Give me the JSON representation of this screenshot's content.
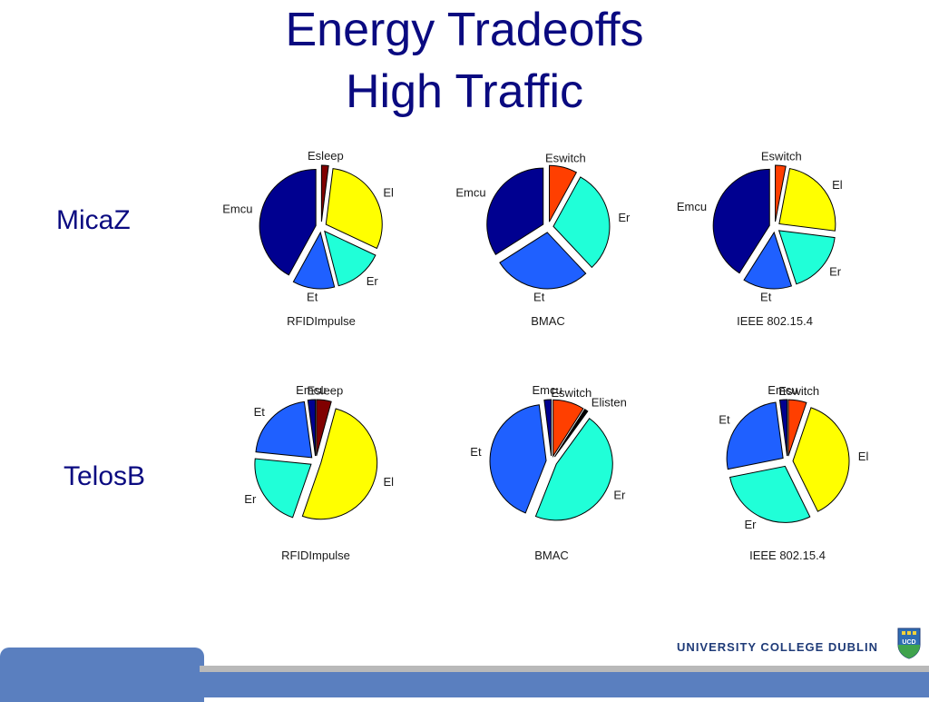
{
  "slide": {
    "title_line1": "Energy Tradeoffs",
    "title_line2": "High Traffic",
    "row_labels": [
      "MicaZ",
      "TelosB"
    ],
    "footer_text": "UNIVERSITY COLLEGE DUBLIN",
    "crest_text": "UCD",
    "crest_icon": "ucd-crest-icon"
  },
  "colors": {
    "Esleep": "#800000",
    "Eswitch": "#ff3f00",
    "El": "#ffff00",
    "Er": "#20ffd8",
    "Et": "#1f60ff",
    "Emcu": "#000090",
    "Elisten": "#000000"
  },
  "chart_data": [
    {
      "type": "pie",
      "row": "MicaZ",
      "title": "RFIDImpulse",
      "slices": [
        {
          "label": "Esleep",
          "value": 2
        },
        {
          "label": "El",
          "value": 30
        },
        {
          "label": "Er",
          "value": 14
        },
        {
          "label": "Et",
          "value": 12
        },
        {
          "label": "Emcu",
          "value": 42
        }
      ]
    },
    {
      "type": "pie",
      "row": "MicaZ",
      "title": "BMAC",
      "slices": [
        {
          "label": "Eswitch",
          "value": 8
        },
        {
          "label": "Er",
          "value": 30
        },
        {
          "label": "Et",
          "value": 28
        },
        {
          "label": "Emcu",
          "value": 34
        }
      ]
    },
    {
      "type": "pie",
      "row": "MicaZ",
      "title": "IEEE 802.15.4",
      "slices": [
        {
          "label": "Eswitch",
          "value": 3
        },
        {
          "label": "El",
          "value": 24
        },
        {
          "label": "Er",
          "value": 18
        },
        {
          "label": "Et",
          "value": 14
        },
        {
          "label": "Emcu",
          "value": 41
        }
      ]
    },
    {
      "type": "pie",
      "row": "TelosB",
      "title": "RFIDImpulse",
      "slices": [
        {
          "label": "Esleep",
          "value": 4
        },
        {
          "label": "El",
          "value": 48
        },
        {
          "label": "Er",
          "value": 20
        },
        {
          "label": "Et",
          "value": 20
        },
        {
          "label": "Emcu",
          "value": 2
        }
      ]
    },
    {
      "type": "pie",
      "row": "TelosB",
      "title": "BMAC",
      "slices": [
        {
          "label": "Eswitch",
          "value": 9
        },
        {
          "label": "Elisten",
          "value": 1
        },
        {
          "label": "Er",
          "value": 46
        },
        {
          "label": "Et",
          "value": 42
        },
        {
          "label": "Emcu",
          "value": 2
        }
      ]
    },
    {
      "type": "pie",
      "row": "TelosB",
      "title": "IEEE 802.15.4",
      "slices": [
        {
          "label": "Eswitch",
          "value": 5
        },
        {
          "label": "El",
          "value": 36
        },
        {
          "label": "Er",
          "value": 28
        },
        {
          "label": "Et",
          "value": 25
        },
        {
          "label": "Emcu",
          "value": 2
        }
      ]
    }
  ]
}
